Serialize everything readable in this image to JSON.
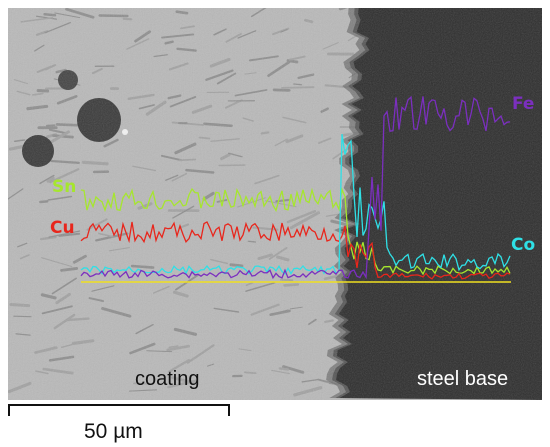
{
  "labels": {
    "sn": "Sn",
    "cu": "Cu",
    "fe": "Fe",
    "co": "Co",
    "coating": "coating",
    "steel_base": "steel base",
    "scale": "50 µm"
  },
  "colors": {
    "sn": "#a6e62e",
    "cu": "#e8261c",
    "fe": "#7b2fbf",
    "co": "#2fe0e6",
    "baseline": "#f0e020",
    "coating_bg": "#b9b9b9",
    "steel_bg": "#2d2d2d",
    "region_text": "#ffffff",
    "coating_text": "#111111"
  }
}
